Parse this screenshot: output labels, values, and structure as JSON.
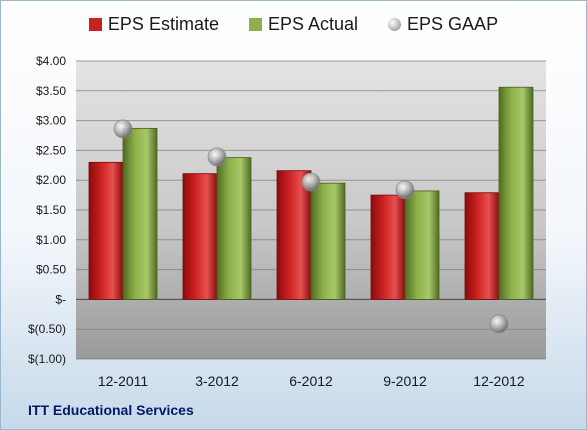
{
  "colors": {
    "estimate": "#cc2020",
    "estimate_dark": "#8a0c0c",
    "actual": "#8cb04a",
    "actual_dark": "#4f6c22",
    "gaap": "#b3b3b3",
    "plot_bg_top": "#e4e4e4",
    "plot_bg_bottom": "#9a9a9a",
    "grid": "#7a7a7a"
  },
  "source_label": "ITT Educational Services",
  "chart_data": {
    "type": "bar",
    "categories": [
      "12-2011",
      "3-2012",
      "6-2012",
      "9-2012",
      "12-2012"
    ],
    "series": [
      {
        "name": "EPS Estimate",
        "kind": "bar",
        "values": [
          2.3,
          2.11,
          2.16,
          1.75,
          1.79
        ]
      },
      {
        "name": "EPS Actual",
        "kind": "bar",
        "values": [
          2.87,
          2.38,
          1.95,
          1.82,
          3.56
        ]
      },
      {
        "name": "EPS GAAP",
        "kind": "marker",
        "values": [
          2.86,
          2.39,
          1.97,
          1.84,
          -0.41
        ]
      }
    ],
    "ylim": [
      -1.0,
      4.0
    ],
    "yticks": [
      4.0,
      3.5,
      3.0,
      2.5,
      2.0,
      1.5,
      1.0,
      0.5,
      0.0,
      -0.5,
      -1.0
    ],
    "ytick_labels": [
      "$4.00",
      "$3.50",
      "$3.00",
      "$2.50",
      "$2.00",
      "$1.50",
      "$1.00",
      "$0.50",
      "$-",
      "$(0.50)",
      "$(1.00)"
    ],
    "grid": true,
    "legend": "top"
  }
}
